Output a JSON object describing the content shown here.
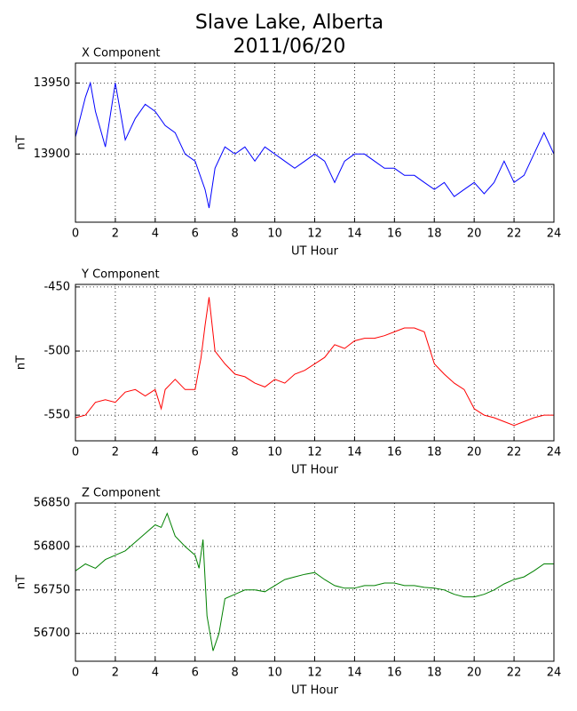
{
  "title": "Slave Lake, Alberta",
  "subtitle": "2011/06/20",
  "chart_data": [
    {
      "type": "line",
      "title": "X Component",
      "xlabel": "UT Hour",
      "ylabel": "nT",
      "color": "#0000ff",
      "x": [
        0,
        0.5,
        0.75,
        1,
        1.5,
        2,
        2.5,
        3,
        3.5,
        4,
        4.5,
        5,
        5.5,
        6,
        6.5,
        6.7,
        7,
        7.5,
        8,
        8.5,
        9,
        9.5,
        10,
        10.5,
        11,
        11.5,
        12,
        12.5,
        13,
        13.5,
        14,
        14.5,
        15,
        15.5,
        16,
        16.5,
        17,
        17.5,
        18,
        18.5,
        19,
        19.5,
        20,
        20.5,
        21,
        21.5,
        22,
        22.5,
        23,
        23.5,
        24
      ],
      "values": [
        13912,
        13940,
        13950,
        13930,
        13905,
        13950,
        13910,
        13925,
        13935,
        13930,
        13920,
        13915,
        13900,
        13895,
        13875,
        13862,
        13890,
        13905,
        13900,
        13905,
        13895,
        13905,
        13900,
        13895,
        13890,
        13895,
        13900,
        13895,
        13880,
        13895,
        13900,
        13900,
        13895,
        13890,
        13890,
        13885,
        13885,
        13880,
        13875,
        13880,
        13870,
        13875,
        13880,
        13872,
        13880,
        13895,
        13880,
        13885,
        13900,
        13915,
        13900
      ],
      "xlim": [
        0,
        24
      ],
      "xticks": [
        0,
        2,
        4,
        6,
        8,
        10,
        12,
        14,
        16,
        18,
        20,
        22,
        24
      ],
      "ylim": [
        13852,
        13964
      ],
      "yticks": [
        13900,
        13950
      ],
      "grid": true
    },
    {
      "type": "line",
      "title": "Y Component",
      "xlabel": "UT Hour",
      "ylabel": "nT",
      "color": "#ff0000",
      "x": [
        0,
        0.5,
        1,
        1.5,
        2,
        2.5,
        3,
        3.5,
        4,
        4.3,
        4.5,
        5,
        5.5,
        6,
        6.3,
        6.5,
        6.7,
        7,
        7.5,
        8,
        8.5,
        9,
        9.5,
        10,
        10.5,
        11,
        11.5,
        12,
        12.5,
        13,
        13.5,
        14,
        14.5,
        15,
        15.5,
        16,
        16.5,
        17,
        17.5,
        18,
        18.5,
        19,
        19.5,
        20,
        20.5,
        21,
        21.5,
        22,
        22.5,
        23,
        23.5,
        24
      ],
      "values": [
        -552,
        -550,
        -540,
        -538,
        -540,
        -532,
        -530,
        -535,
        -530,
        -545,
        -530,
        -522,
        -530,
        -530,
        -505,
        -480,
        -458,
        -500,
        -510,
        -518,
        -520,
        -525,
        -528,
        -522,
        -525,
        -518,
        -515,
        -510,
        -505,
        -495,
        -498,
        -492,
        -490,
        -490,
        -488,
        -485,
        -482,
        -482,
        -485,
        -510,
        -518,
        -525,
        -530,
        -545,
        -550,
        -552,
        -555,
        -558,
        -555,
        -552,
        -550,
        -550
      ],
      "xlim": [
        0,
        24
      ],
      "xticks": [
        0,
        2,
        4,
        6,
        8,
        10,
        12,
        14,
        16,
        18,
        20,
        22,
        24
      ],
      "ylim": [
        -570,
        -448
      ],
      "yticks": [
        -550,
        -500,
        -450
      ],
      "grid": true
    },
    {
      "type": "line",
      "title": "Z Component",
      "xlabel": "UT Hour",
      "ylabel": "nT",
      "color": "#008000",
      "x": [
        0,
        0.5,
        1,
        1.5,
        2,
        2.5,
        3,
        3.5,
        4,
        4.3,
        4.6,
        5,
        5.5,
        6,
        6.2,
        6.4,
        6.6,
        6.9,
        7.2,
        7.5,
        8,
        8.5,
        9,
        9.5,
        10,
        10.5,
        11,
        11.5,
        12,
        12.5,
        13,
        13.5,
        14,
        14.5,
        15,
        15.5,
        16,
        16.5,
        17,
        17.5,
        18,
        18.5,
        19,
        19.5,
        20,
        20.5,
        21,
        21.5,
        22,
        22.5,
        23,
        23.5,
        24
      ],
      "values": [
        56772,
        56780,
        56775,
        56785,
        56790,
        56795,
        56805,
        56815,
        56825,
        56822,
        56838,
        56812,
        56800,
        56790,
        56775,
        56808,
        56720,
        56680,
        56700,
        56740,
        56745,
        56750,
        56750,
        56748,
        56755,
        56762,
        56765,
        56768,
        56770,
        56762,
        56755,
        56752,
        56752,
        56755,
        56755,
        56758,
        56758,
        56755,
        56755,
        56753,
        56752,
        56750,
        56745,
        56742,
        56742,
        56745,
        56750,
        56757,
        56762,
        56765,
        56772,
        56780,
        56780
      ],
      "xlim": [
        0,
        24
      ],
      "xticks": [
        0,
        2,
        4,
        6,
        8,
        10,
        12,
        14,
        16,
        18,
        20,
        22,
        24
      ],
      "ylim": [
        56668,
        56850
      ],
      "yticks": [
        56700,
        56750,
        56800,
        56850
      ],
      "grid": true
    }
  ]
}
